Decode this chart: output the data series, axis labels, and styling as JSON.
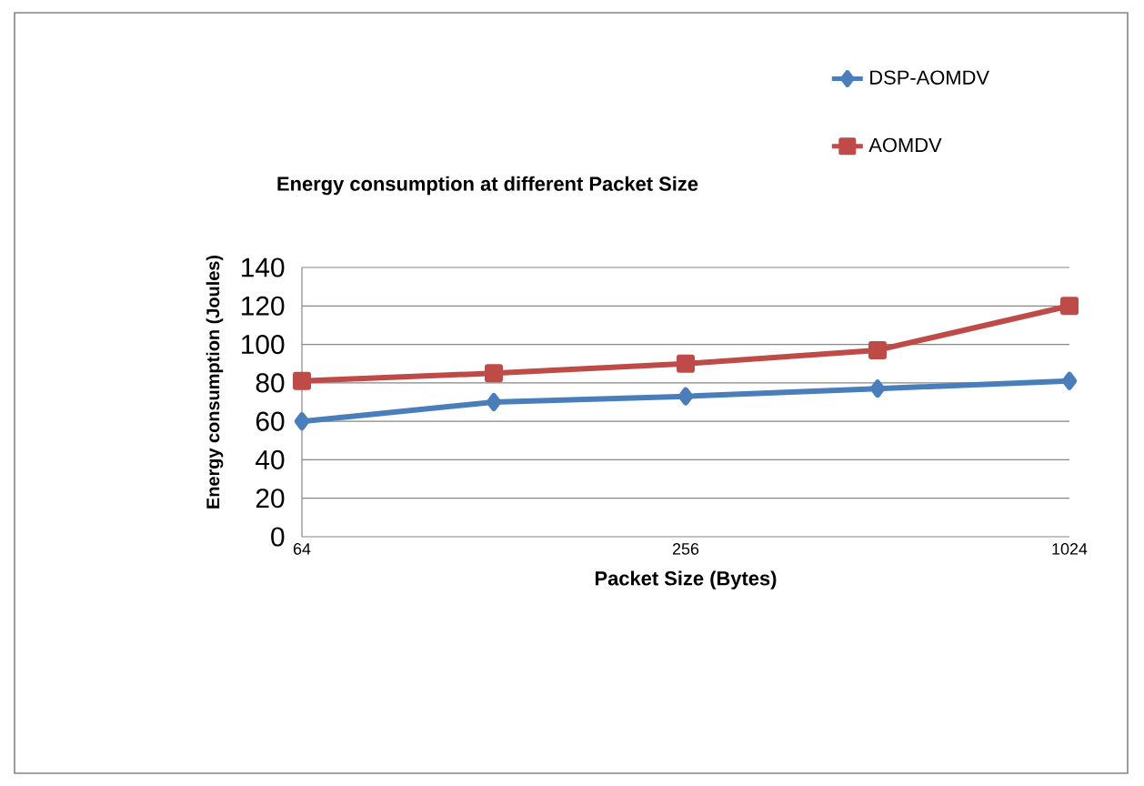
{
  "chart_data": {
    "type": "line",
    "title": "Energy consumption at different Packet Size",
    "xlabel": "Packet Size (Bytes)",
    "ylabel": "Energy consumption (Joules)",
    "categories": [
      "64",
      null,
      "256",
      null,
      "1024"
    ],
    "series": [
      {
        "name": "DSP-AOMDV",
        "color": "#4a7ebb",
        "marker": "diamond",
        "values": [
          60,
          70,
          73,
          77,
          81
        ]
      },
      {
        "name": "AOMDV",
        "color": "#be4b48",
        "marker": "square",
        "values": [
          81,
          85,
          90,
          97,
          120
        ]
      }
    ],
    "ylim": [
      0,
      140
    ],
    "yticks": [
      0,
      20,
      40,
      60,
      80,
      100,
      120,
      140
    ],
    "grid": "y",
    "legend": "top right",
    "line_style": "solid"
  }
}
